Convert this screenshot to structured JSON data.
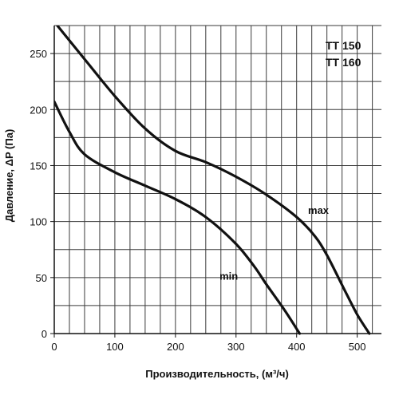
{
  "chart_data": {
    "type": "line",
    "xlabel": "Производительность, (м³/ч)",
    "ylabel": "Давление, ΔP (Па)",
    "xlim": [
      0,
      540
    ],
    "ylim": [
      0,
      275
    ],
    "x_ticks": [
      "0",
      "100",
      "200",
      "300",
      "400",
      "500"
    ],
    "y_ticks": [
      "0",
      "50",
      "100",
      "150",
      "200",
      "250"
    ],
    "grid": true,
    "models": [
      "TT 150",
      "TT 160"
    ],
    "legend_position": "top-right",
    "series": [
      {
        "name": "max",
        "color": "#111111",
        "points": [
          [
            5,
            275
          ],
          [
            50,
            245
          ],
          [
            100,
            212
          ],
          [
            150,
            183
          ],
          [
            200,
            163
          ],
          [
            250,
            153
          ],
          [
            300,
            140
          ],
          [
            350,
            124
          ],
          [
            400,
            104
          ],
          [
            430,
            87
          ],
          [
            450,
            70
          ],
          [
            480,
            38
          ],
          [
            500,
            17
          ],
          [
            520,
            0
          ]
        ]
      },
      {
        "name": "min",
        "color": "#111111",
        "points": [
          [
            0,
            207
          ],
          [
            25,
            180
          ],
          [
            50,
            160
          ],
          [
            100,
            144
          ],
          [
            150,
            132
          ],
          [
            200,
            120
          ],
          [
            250,
            104
          ],
          [
            300,
            80
          ],
          [
            330,
            60
          ],
          [
            350,
            44
          ],
          [
            380,
            21
          ],
          [
            405,
            0
          ]
        ]
      }
    ]
  }
}
